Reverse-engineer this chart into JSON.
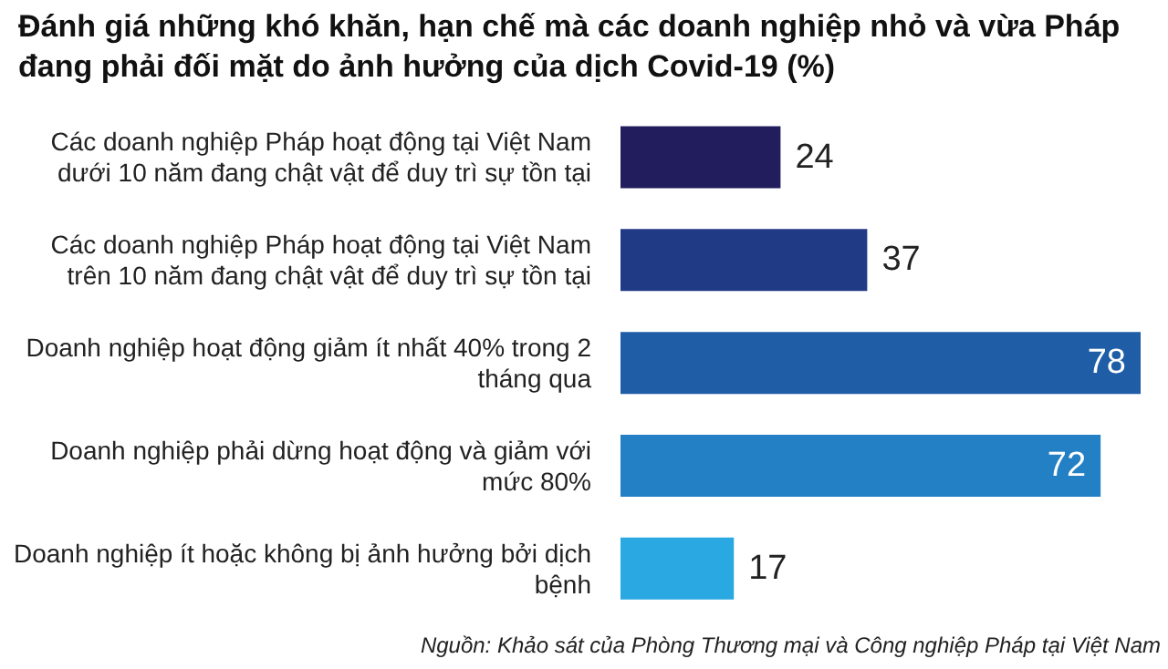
{
  "chart_data": {
    "type": "bar",
    "orientation": "horizontal",
    "title": "Đánh giá những khó khăn, hạn chế mà các doanh nghiệp nhỏ và vừa Pháp đang phải đối mặt do ảnh hưởng của dịch Covid-19 (%)",
    "categories": [
      "Các doanh nghiệp Pháp hoạt động tại Việt Nam dưới 10 năm đang chật vật để duy trì sự tồn tại",
      "Các doanh nghiệp Pháp hoạt động tại Việt Nam trên 10 năm đang chật vật để duy trì sự tồn tại",
      "Doanh nghiệp hoạt động giảm ít nhất 40% trong 2 tháng qua",
      "Doanh nghiệp phải dừng hoạt động và giảm với mức 80%",
      "Doanh nghiệp ít hoặc không bị ảnh hưởng bởi dịch bệnh"
    ],
    "values": [
      24,
      37,
      78,
      72,
      17
    ],
    "colors": [
      "#221d5c",
      "#213a86",
      "#1f5ea6",
      "#2380c4",
      "#2aa8e2"
    ],
    "data_labels": true,
    "annotations": [
      "Nguồn: Khảo sát của Phòng Thương mại và Công nghiệp Pháp tại Việt Nam"
    ]
  }
}
